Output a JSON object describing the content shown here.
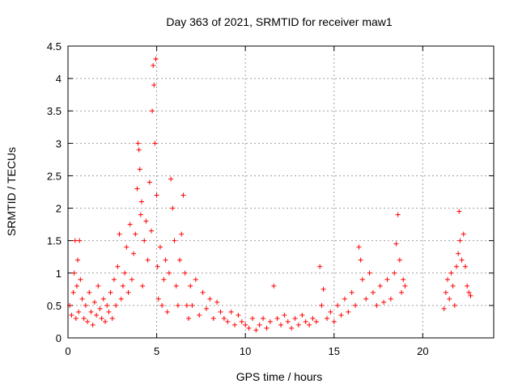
{
  "chart_data": {
    "type": "scatter",
    "title": "Day 363 of 2021, SRMTID for receiver maw1",
    "xlabel": "GPS time / hours",
    "ylabel": "SRMTID / TECUs",
    "xlim": [
      0,
      24
    ],
    "ylim": [
      0,
      4.5
    ],
    "x_ticks": [
      0,
      5,
      10,
      15,
      20
    ],
    "x_tick_labels": [
      "0",
      "5",
      "10",
      "15",
      "20"
    ],
    "y_ticks": [
      0,
      0.5,
      1,
      1.5,
      2,
      2.5,
      3,
      3.5,
      4,
      4.5
    ],
    "y_tick_labels": [
      "0",
      "0.5",
      "1",
      "1.5",
      "2",
      "2.5",
      "3",
      "3.5",
      "4",
      "4.5"
    ],
    "grid": true,
    "marker": "+",
    "color": "#ff0000",
    "series": [
      {
        "name": "SRMTID",
        "points": [
          [
            0.1,
            0.5
          ],
          [
            0.2,
            0.35
          ],
          [
            0.3,
            0.7
          ],
          [
            0.35,
            1.0
          ],
          [
            0.4,
            1.5
          ],
          [
            0.45,
            0.3
          ],
          [
            0.5,
            0.8
          ],
          [
            0.55,
            1.2
          ],
          [
            0.6,
            0.4
          ],
          [
            0.65,
            1.5
          ],
          [
            0.7,
            0.9
          ],
          [
            0.8,
            0.6
          ],
          [
            0.9,
            0.3
          ],
          [
            1.0,
            0.5
          ],
          [
            1.1,
            0.25
          ],
          [
            1.2,
            0.7
          ],
          [
            1.3,
            0.4
          ],
          [
            1.4,
            0.2
          ],
          [
            1.5,
            0.55
          ],
          [
            1.6,
            0.35
          ],
          [
            1.7,
            0.8
          ],
          [
            1.8,
            0.45
          ],
          [
            1.9,
            0.3
          ],
          [
            2.0,
            0.6
          ],
          [
            2.1,
            0.25
          ],
          [
            2.2,
            0.5
          ],
          [
            2.3,
            0.4
          ],
          [
            2.4,
            0.7
          ],
          [
            2.5,
            0.3
          ],
          [
            2.6,
            0.9
          ],
          [
            2.7,
            0.5
          ],
          [
            2.8,
            1.1
          ],
          [
            2.9,
            1.6
          ],
          [
            3.0,
            0.6
          ],
          [
            3.1,
            0.8
          ],
          [
            3.2,
            1.0
          ],
          [
            3.3,
            1.4
          ],
          [
            3.4,
            0.7
          ],
          [
            3.5,
            1.75
          ],
          [
            3.6,
            0.9
          ],
          [
            3.7,
            1.3
          ],
          [
            3.8,
            1.6
          ],
          [
            3.9,
            2.3
          ],
          [
            3.95,
            3.0
          ],
          [
            4.0,
            2.9
          ],
          [
            4.05,
            2.6
          ],
          [
            4.1,
            1.9
          ],
          [
            4.15,
            2.1
          ],
          [
            4.2,
            0.8
          ],
          [
            4.3,
            1.5
          ],
          [
            4.4,
            1.8
          ],
          [
            4.5,
            1.2
          ],
          [
            4.6,
            2.4
          ],
          [
            4.7,
            1.65
          ],
          [
            4.75,
            3.5
          ],
          [
            4.8,
            4.2
          ],
          [
            4.85,
            3.9
          ],
          [
            4.9,
            3.0
          ],
          [
            4.95,
            4.3
          ],
          [
            5.0,
            2.2
          ],
          [
            5.05,
            1.1
          ],
          [
            5.1,
            0.6
          ],
          [
            5.2,
            1.4
          ],
          [
            5.3,
            0.5
          ],
          [
            5.4,
            0.9
          ],
          [
            5.5,
            1.2
          ],
          [
            5.6,
            0.4
          ],
          [
            5.7,
            1.0
          ],
          [
            5.8,
            2.45
          ],
          [
            5.9,
            2.0
          ],
          [
            6.0,
            1.5
          ],
          [
            6.1,
            0.8
          ],
          [
            6.2,
            0.5
          ],
          [
            6.3,
            1.2
          ],
          [
            6.4,
            1.6
          ],
          [
            6.5,
            2.2
          ],
          [
            6.6,
            1.0
          ],
          [
            6.7,
            0.5
          ],
          [
            6.8,
            0.3
          ],
          [
            6.9,
            0.8
          ],
          [
            7.0,
            0.5
          ],
          [
            7.2,
            0.9
          ],
          [
            7.4,
            0.35
          ],
          [
            7.6,
            0.7
          ],
          [
            7.8,
            0.45
          ],
          [
            8.0,
            0.6
          ],
          [
            8.2,
            0.3
          ],
          [
            8.4,
            0.55
          ],
          [
            8.6,
            0.4
          ],
          [
            8.8,
            0.3
          ],
          [
            9.0,
            0.25
          ],
          [
            9.2,
            0.4
          ],
          [
            9.4,
            0.2
          ],
          [
            9.6,
            0.35
          ],
          [
            9.8,
            0.25
          ],
          [
            10.0,
            0.2
          ],
          [
            10.2,
            0.15
          ],
          [
            10.4,
            0.3
          ],
          [
            10.6,
            0.12
          ],
          [
            10.8,
            0.2
          ],
          [
            11.0,
            0.3
          ],
          [
            11.2,
            0.15
          ],
          [
            11.4,
            0.25
          ],
          [
            11.6,
            0.8
          ],
          [
            11.8,
            0.3
          ],
          [
            12.0,
            0.2
          ],
          [
            12.2,
            0.35
          ],
          [
            12.4,
            0.25
          ],
          [
            12.6,
            0.15
          ],
          [
            12.8,
            0.3
          ],
          [
            13.0,
            0.2
          ],
          [
            13.2,
            0.35
          ],
          [
            13.4,
            0.25
          ],
          [
            13.6,
            0.2
          ],
          [
            13.8,
            0.3
          ],
          [
            14.0,
            0.25
          ],
          [
            14.2,
            1.1
          ],
          [
            14.3,
            0.5
          ],
          [
            14.4,
            0.75
          ],
          [
            14.6,
            0.3
          ],
          [
            14.8,
            0.4
          ],
          [
            15.0,
            0.25
          ],
          [
            15.2,
            0.5
          ],
          [
            15.4,
            0.35
          ],
          [
            15.6,
            0.6
          ],
          [
            15.8,
            0.4
          ],
          [
            16.0,
            0.7
          ],
          [
            16.2,
            0.5
          ],
          [
            16.4,
            1.4
          ],
          [
            16.5,
            1.2
          ],
          [
            16.6,
            0.9
          ],
          [
            16.8,
            0.6
          ],
          [
            17.0,
            1.0
          ],
          [
            17.2,
            0.7
          ],
          [
            17.4,
            0.5
          ],
          [
            17.6,
            0.8
          ],
          [
            17.8,
            0.55
          ],
          [
            18.0,
            0.9
          ],
          [
            18.2,
            0.6
          ],
          [
            18.4,
            1.0
          ],
          [
            18.5,
            1.45
          ],
          [
            18.6,
            1.9
          ],
          [
            18.7,
            1.2
          ],
          [
            18.8,
            0.7
          ],
          [
            18.9,
            0.9
          ],
          [
            19.0,
            0.8
          ],
          [
            21.2,
            0.45
          ],
          [
            21.3,
            0.7
          ],
          [
            21.4,
            0.9
          ],
          [
            21.5,
            0.6
          ],
          [
            21.6,
            1.0
          ],
          [
            21.7,
            0.8
          ],
          [
            21.8,
            0.5
          ],
          [
            21.9,
            1.1
          ],
          [
            22.0,
            1.3
          ],
          [
            22.05,
            1.95
          ],
          [
            22.1,
            1.5
          ],
          [
            22.2,
            1.2
          ],
          [
            22.3,
            1.6
          ],
          [
            22.4,
            1.1
          ],
          [
            22.5,
            0.8
          ],
          [
            22.6,
            0.7
          ],
          [
            22.7,
            0.65
          ]
        ]
      }
    ]
  }
}
